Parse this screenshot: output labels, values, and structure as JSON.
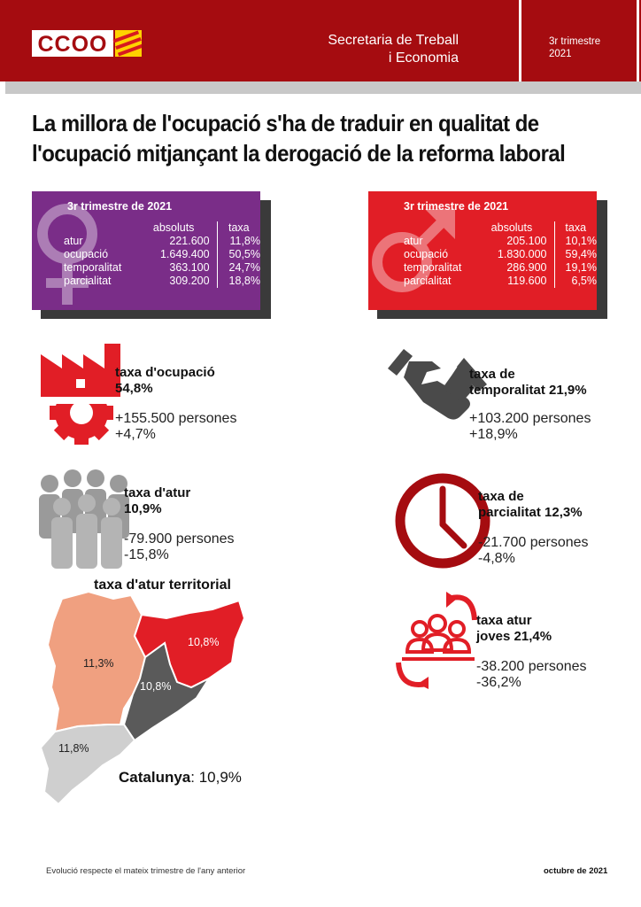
{
  "header": {
    "logo_text": "CCOO",
    "title_line1": "Secretaria de Treball",
    "title_line2": "i Economia",
    "period_line1": "3r trimestre",
    "period_line2": "2021"
  },
  "headline": {
    "line1": "La millora de l'ocupació s'ha de traduir en qualitat de",
    "line2": "l'ocupació mitjançant la derogació de la reforma laboral"
  },
  "women_box": {
    "title": "3r trimestre de 2021",
    "col_abs": "absoluts",
    "col_rate": "taxa",
    "rows": [
      {
        "label": "atur",
        "abs": "221.600",
        "rate": "11,8%"
      },
      {
        "label": "ocupació",
        "abs": "1.649.400",
        "rate": "50,5%"
      },
      {
        "label": "temporalitat",
        "abs": "363.100",
        "rate": "24,7%"
      },
      {
        "label": "parcialitat",
        "abs": "309.200",
        "rate": "18,8%"
      }
    ],
    "color": "#7a2d88"
  },
  "men_box": {
    "title": "3r trimestre de 2021",
    "col_abs": "absoluts",
    "col_rate": "taxa",
    "rows": [
      {
        "label": "atur",
        "abs": "205.100",
        "rate": "10,1%"
      },
      {
        "label": "ocupació",
        "abs": "1.830.000",
        "rate": "59,4%"
      },
      {
        "label": "temporalitat",
        "abs": "286.900",
        "rate": "19,1%"
      },
      {
        "label": "parcialitat",
        "abs": "119.600",
        "rate": "6,5%"
      }
    ],
    "color": "#e11e26"
  },
  "indicators": {
    "employment": {
      "title1": "taxa d'ocupació",
      "title2": "54,8%",
      "sub1": "+155.500 persones",
      "sub2": "+4,7%",
      "icon": "factory-gear-icon"
    },
    "temporality": {
      "title1": "taxa de",
      "title2": "temporalitat 21,9%",
      "sub1": "+103.200 persones",
      "sub2": "+18,9%",
      "icon": "handshake-icon"
    },
    "unemployment": {
      "title1": "taxa d'atur",
      "title2": "10,9%",
      "sub1": "-79.900 persones",
      "sub2": "-15,8%",
      "icon": "people-group-icon"
    },
    "parttime": {
      "title1": "taxa de",
      "title2": "parcialitat 12,3%",
      "sub1": "-21.700 persones",
      "sub2": "-4,8%",
      "icon": "clock-icon"
    },
    "youth": {
      "title1": "taxa atur",
      "title2": "joves 21,4%",
      "sub1": "-38.200 persones",
      "sub2": "-36,2%",
      "icon": "youth-cycle-icon"
    }
  },
  "map": {
    "title": "taxa d'atur territorial",
    "lleida": "11,3%",
    "girona": "10,8%",
    "barcelona": "10,8%",
    "tarragona": "11,8%",
    "total_label": "Catalunya",
    "total_value": ": 10,9%",
    "colors": {
      "lleida": "#f0a080",
      "girona": "#e11e26",
      "barcelona": "#5a5a5a",
      "tarragona": "#cfcfcf"
    }
  },
  "footer": {
    "note": "Evolució respecte el mateix trimestre de l'any anterior",
    "date": "octubre de 2021"
  }
}
